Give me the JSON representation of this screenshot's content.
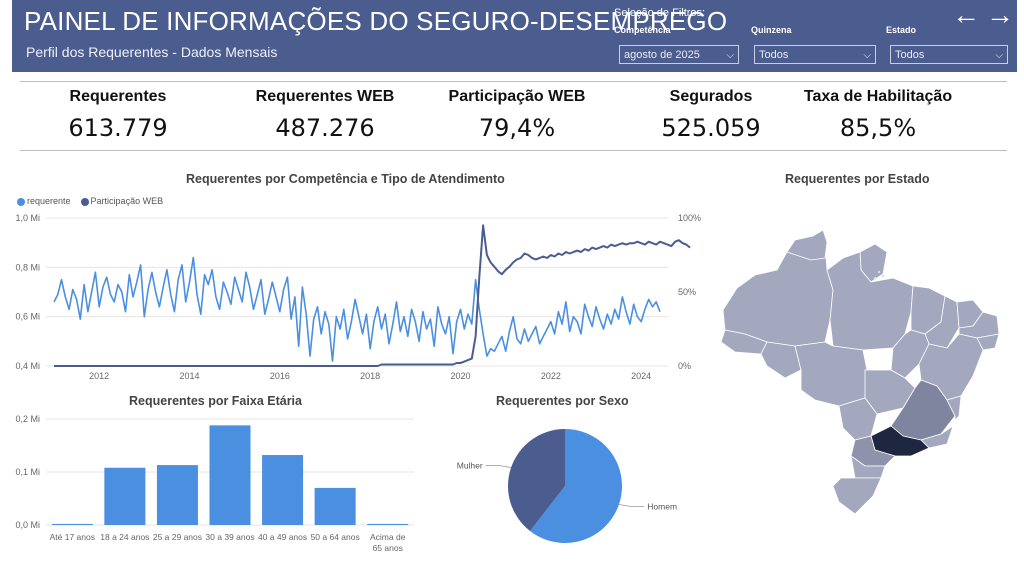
{
  "header": {
    "title": "PAINEL DE INFORMAÇÕES DO SEGURO-DESEMPREGO",
    "subtitle": "Perfil dos Requerentes - Dados Mensais",
    "filters_title": "Seleção de Filtros:",
    "filters": [
      {
        "label": "Competência",
        "value": "agosto de 2025"
      },
      {
        "label": "Quinzena",
        "value": "Todos"
      },
      {
        "label": "Estado",
        "value": "Todos"
      }
    ],
    "nav": {
      "back": "←",
      "forward": "→"
    }
  },
  "kpis": [
    {
      "label": "Requerentes",
      "value": "613.779"
    },
    {
      "label": "Requerentes WEB",
      "value": "487.276"
    },
    {
      "label": "Participação WEB",
      "value": "79,4%"
    },
    {
      "label": "Segurados",
      "value": "525.059"
    },
    {
      "label": "Taxa de Habilitação",
      "value": "85,5%"
    }
  ],
  "colors": {
    "header": "#4b5d8f",
    "requerente": "#4a8fe0",
    "web": "#4b5d8f",
    "map_base": "#a3a8bf",
    "map_dark": "#1f2740"
  },
  "chart_data": [
    {
      "type": "line",
      "title": "Requerentes por Competência e Tipo de Atendimento",
      "legend_position": "top-left",
      "series": [
        {
          "name": "requerente",
          "axis": "left",
          "x_start": "2011-01",
          "step": "month",
          "values": [
            0.66,
            0.69,
            0.75,
            0.68,
            0.63,
            0.71,
            0.67,
            0.59,
            0.73,
            0.62,
            0.7,
            0.78,
            0.64,
            0.72,
            0.76,
            0.69,
            0.66,
            0.73,
            0.7,
            0.62,
            0.77,
            0.68,
            0.74,
            0.81,
            0.6,
            0.71,
            0.78,
            0.7,
            0.64,
            0.72,
            0.79,
            0.69,
            0.62,
            0.75,
            0.81,
            0.66,
            0.74,
            0.84,
            0.69,
            0.61,
            0.77,
            0.73,
            0.79,
            0.68,
            0.63,
            0.74,
            0.7,
            0.65,
            0.76,
            0.71,
            0.66,
            0.78,
            0.72,
            0.63,
            0.69,
            0.75,
            0.61,
            0.67,
            0.74,
            0.68,
            0.62,
            0.71,
            0.76,
            0.59,
            0.68,
            0.48,
            0.72,
            0.61,
            0.44,
            0.59,
            0.64,
            0.53,
            0.62,
            0.57,
            0.42,
            0.6,
            0.55,
            0.63,
            0.51,
            0.58,
            0.67,
            0.6,
            0.53,
            0.61,
            0.47,
            0.58,
            0.64,
            0.55,
            0.61,
            0.49,
            0.57,
            0.66,
            0.54,
            0.6,
            0.52,
            0.63,
            0.58,
            0.5,
            0.62,
            0.55,
            0.59,
            0.48,
            0.64,
            0.57,
            0.53,
            0.6,
            0.45,
            0.58,
            0.63,
            0.55,
            0.61,
            0.57,
            0.75,
            0.63,
            0.53,
            0.44,
            0.47,
            0.46,
            0.49,
            0.52,
            0.46,
            0.54,
            0.6,
            0.51,
            0.49,
            0.55,
            0.5,
            0.53,
            0.56,
            0.49,
            0.52,
            0.55,
            0.58,
            0.53,
            0.62,
            0.57,
            0.66,
            0.54,
            0.6,
            0.58,
            0.53,
            0.65,
            0.6,
            0.56,
            0.64,
            0.59,
            0.55,
            0.61,
            0.57,
            0.63,
            0.59,
            0.68,
            0.62,
            0.57,
            0.65,
            0.6,
            0.58,
            0.63,
            0.67,
            0.64,
            0.66,
            0.62
          ]
        },
        {
          "name": "Participação WEB",
          "axis": "right",
          "x_start": "2011-01",
          "step": "month",
          "values": [
            0,
            0,
            0,
            0,
            0,
            0,
            0,
            0,
            0,
            0,
            0,
            0,
            0,
            0,
            0,
            0,
            0,
            0,
            0,
            0,
            0,
            0,
            0,
            0,
            0,
            0,
            0,
            0,
            0,
            0,
            0,
            0,
            0,
            0,
            0,
            0,
            0,
            0,
            0,
            0,
            0,
            0,
            0,
            0,
            0,
            0,
            0,
            0,
            0,
            0,
            0,
            0,
            0,
            0,
            0,
            0,
            0,
            0,
            0,
            0,
            0,
            0,
            0,
            0,
            0,
            0,
            0,
            0,
            0,
            0,
            0,
            0,
            0,
            0,
            0,
            0,
            0,
            0,
            0,
            0,
            0,
            0,
            0,
            0,
            0,
            0,
            0,
            1,
            1,
            1,
            1,
            1,
            1,
            1,
            1,
            1,
            1,
            1,
            1,
            1,
            1,
            1,
            1,
            1,
            1,
            1,
            1,
            2,
            2,
            3,
            4,
            5,
            20,
            60,
            95,
            75,
            70,
            67,
            64,
            62,
            65,
            67,
            70,
            72,
            73,
            76,
            75,
            73,
            72,
            73,
            74,
            73,
            75,
            74,
            76,
            75,
            77,
            76,
            77,
            78,
            77,
            79,
            78,
            80,
            79,
            80,
            81,
            80,
            82,
            81,
            82,
            83,
            82,
            83,
            83,
            84,
            83,
            82,
            84,
            83,
            82,
            84,
            83,
            82,
            81,
            84,
            85,
            83,
            82,
            80
          ]
        }
      ],
      "x_ticks": [
        "2012",
        "2014",
        "2016",
        "2018",
        "2020",
        "2022",
        "2024"
      ],
      "y_left_ticks": [
        "1,0 Mi",
        "0,8 Mi",
        "0,6 Mi",
        "0,4 Mi"
      ],
      "y_left_range": [
        0.4,
        1.0
      ],
      "y_right_ticks": [
        "100%",
        "50%",
        "0%"
      ],
      "y_right_range": [
        0,
        100
      ],
      "grid": true
    },
    {
      "type": "bar",
      "title": "Requerentes por Faixa Etária",
      "categories": [
        "Até 17 anos",
        "18 a 24 anos",
        "25 a 29 anos",
        "30 a 39 anos",
        "40 a 49 anos",
        "50 a 64 anos",
        "Acima de 65 anos"
      ],
      "values": [
        0.002,
        0.108,
        0.113,
        0.188,
        0.132,
        0.07,
        0.002
      ],
      "y_ticks": [
        "0,2 Mi",
        "0,1 Mi",
        "0,0 Mi"
      ],
      "ylim": [
        0,
        0.2
      ],
      "grid": true
    },
    {
      "type": "pie",
      "title": "Requerentes por Sexo",
      "slices": [
        {
          "label": "Homem",
          "value": 60.5,
          "color": "#4a8fe0"
        },
        {
          "label": "Mulher",
          "value": 39.5,
          "color": "#4b5d8f"
        }
      ]
    },
    {
      "type": "map",
      "title": "Requerentes por Estado"
    }
  ]
}
